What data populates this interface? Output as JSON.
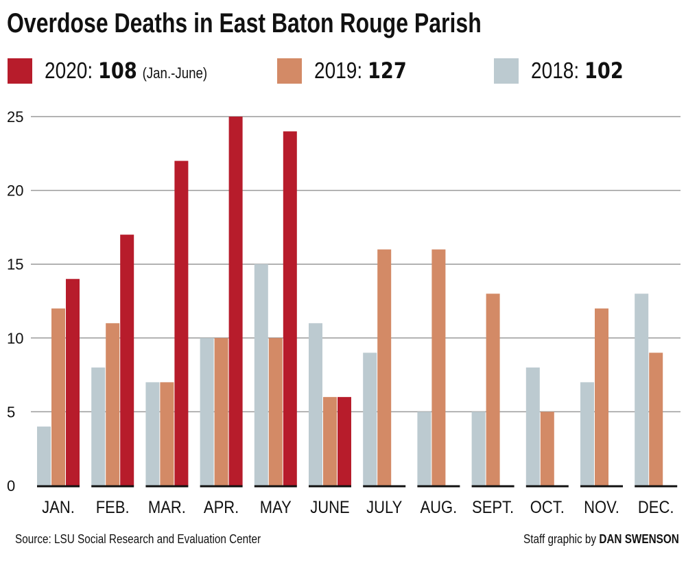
{
  "title": "Overdose Deaths in East Baton Rouge Parish",
  "legend": [
    {
      "label": "2020:",
      "total": "108",
      "note": "(Jan.-June)",
      "color": "#b71c2b"
    },
    {
      "label": "2019:",
      "total": "127",
      "note": "",
      "color": "#d38a66"
    },
    {
      "label": "2018:",
      "total": "102",
      "note": "",
      "color": "#bccad0"
    }
  ],
  "source": "Source: LSU Social Research and Evaluation Center",
  "credit_prefix": "Staff graphic by",
  "credit_name": "DAN SWENSON",
  "chart_data": {
    "type": "bar",
    "title": "Overdose Deaths in East Baton Rouge Parish",
    "categories": [
      "JAN.",
      "FEB.",
      "MAR.",
      "APR.",
      "MAY",
      "JUNE",
      "JULY",
      "AUG.",
      "SEPT.",
      "OCT.",
      "NOV.",
      "DEC."
    ],
    "ylim": [
      0,
      25
    ],
    "yticks": [
      0,
      5,
      10,
      15,
      20,
      25
    ],
    "grid": true,
    "legend_position": "top",
    "series": [
      {
        "name": "2018",
        "color": "#bccad0",
        "values": [
          4,
          8,
          7,
          10,
          15,
          11,
          9,
          5,
          5,
          8,
          7,
          13
        ]
      },
      {
        "name": "2019",
        "color": "#d38a66",
        "values": [
          12,
          11,
          7,
          10,
          10,
          6,
          16,
          16,
          13,
          5,
          12,
          9
        ]
      },
      {
        "name": "2020",
        "color": "#b71c2b",
        "values": [
          14,
          17,
          22,
          25,
          24,
          6,
          null,
          null,
          null,
          null,
          null,
          null
        ]
      }
    ]
  }
}
